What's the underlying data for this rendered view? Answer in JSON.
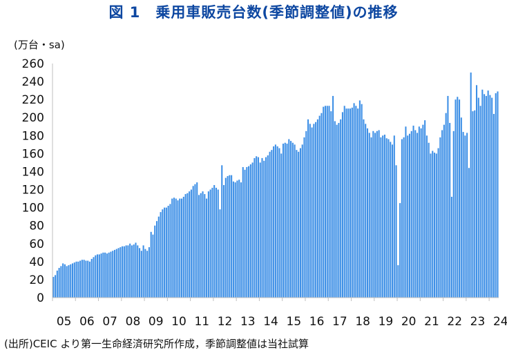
{
  "title": "図 1　乗用車販売台数(季節調整値)の推移",
  "unit": "(万台・sa)",
  "source": "(出所)CEIC より第一生命経済研究所作成，季節調整値は当社試算",
  "chart_data": {
    "type": "bar",
    "title": "図 1　乗用車販売台数(季節調整値)の推移",
    "ylabel": "(万台・sa)",
    "ylim": [
      0,
      260
    ],
    "yticks": [
      0,
      20,
      40,
      60,
      80,
      100,
      120,
      140,
      160,
      180,
      200,
      220,
      240,
      260
    ],
    "xtick_labels": [
      "05",
      "06",
      "07",
      "08",
      "09",
      "10",
      "11",
      "12",
      "13",
      "14",
      "15",
      "16",
      "17",
      "18",
      "19",
      "20",
      "21",
      "22",
      "23",
      "24"
    ],
    "x_start": "2005-01",
    "frequency": "monthly",
    "bar_color": "#3d8fe6",
    "grid": false,
    "values": [
      23,
      25,
      30,
      33,
      35,
      38,
      37,
      35,
      36,
      37,
      38,
      39,
      40,
      40,
      41,
      42,
      42,
      41,
      41,
      40,
      43,
      45,
      47,
      48,
      48,
      49,
      50,
      50,
      49,
      50,
      51,
      52,
      53,
      54,
      55,
      56,
      57,
      57,
      58,
      58,
      60,
      58,
      59,
      61,
      58,
      55,
      52,
      58,
      54,
      52,
      56,
      73,
      70,
      80,
      85,
      90,
      95,
      98,
      100,
      100,
      102,
      104,
      110,
      111,
      110,
      108,
      110,
      110,
      112,
      115,
      116,
      118,
      120,
      124,
      126,
      128,
      114,
      116,
      118,
      115,
      110,
      118,
      120,
      122,
      125,
      122,
      120,
      98,
      147,
      125,
      133,
      135,
      136,
      136,
      129,
      128,
      130,
      131,
      128,
      145,
      142,
      145,
      146,
      148,
      150,
      155,
      157,
      156,
      150,
      155,
      152,
      156,
      158,
      162,
      164,
      168,
      170,
      168,
      166,
      160,
      171,
      172,
      171,
      176,
      174,
      172,
      170,
      164,
      162,
      166,
      170,
      178,
      185,
      198,
      193,
      189,
      193,
      195,
      198,
      202,
      205,
      212,
      213,
      213,
      213,
      207,
      224,
      196,
      192,
      194,
      198,
      206,
      213,
      210,
      210,
      210,
      211,
      216,
      213,
      210,
      219,
      215,
      198,
      193,
      188,
      183,
      178,
      185,
      183,
      185,
      186,
      178,
      180,
      181,
      177,
      176,
      173,
      170,
      180,
      147,
      36,
      105,
      176,
      178,
      190,
      180,
      182,
      185,
      191,
      186,
      183,
      190,
      188,
      192,
      197,
      180,
      172,
      160,
      163,
      161,
      160,
      166,
      178,
      186,
      192,
      205,
      224,
      194,
      112,
      185,
      220,
      223,
      220,
      200,
      184,
      180,
      183,
      144,
      250,
      207,
      208,
      236,
      222,
      213,
      231,
      226,
      224,
      230,
      225,
      222,
      204,
      227,
      229
    ]
  }
}
